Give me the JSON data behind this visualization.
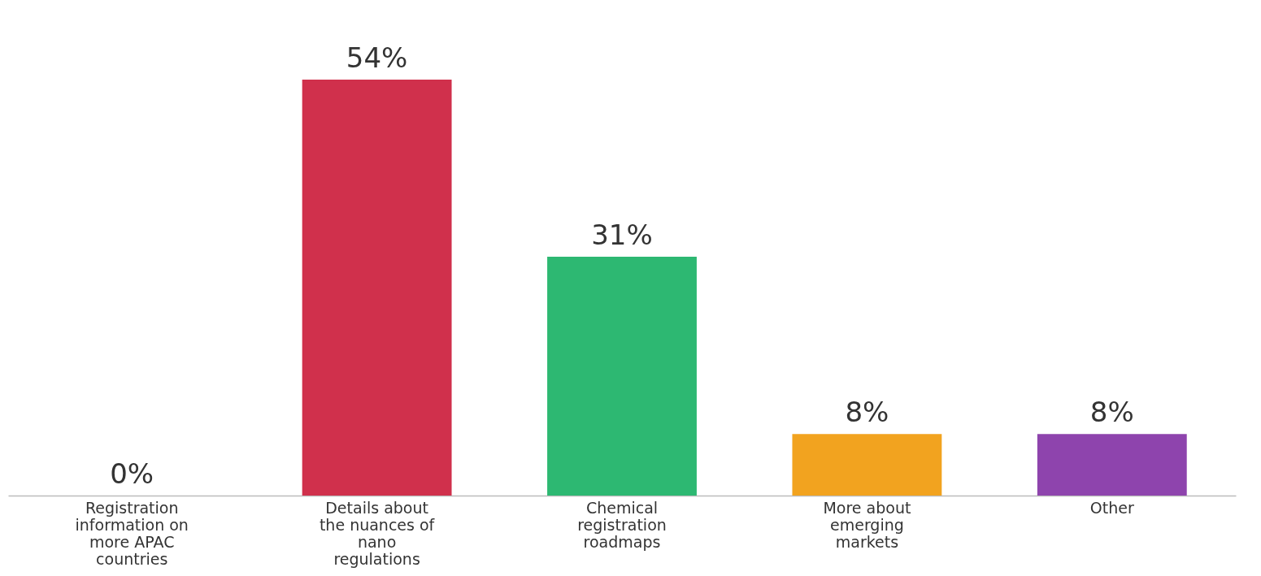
{
  "chart_data": {
    "type": "bar",
    "categories": [
      "Registration information on more APAC countries",
      "Details about the nuances of nano regulations",
      "Chemical registration roadmaps",
      "More about emerging markets",
      "Other"
    ],
    "values": [
      0,
      54,
      31,
      8,
      8
    ],
    "value_labels": [
      "0%",
      "54%",
      "31%",
      "8%",
      "8%"
    ],
    "colors": [
      "#3a7fc0",
      "#d0304c",
      "#2db872",
      "#f2a31f",
      "#8e44ad"
    ],
    "grid": false
  }
}
